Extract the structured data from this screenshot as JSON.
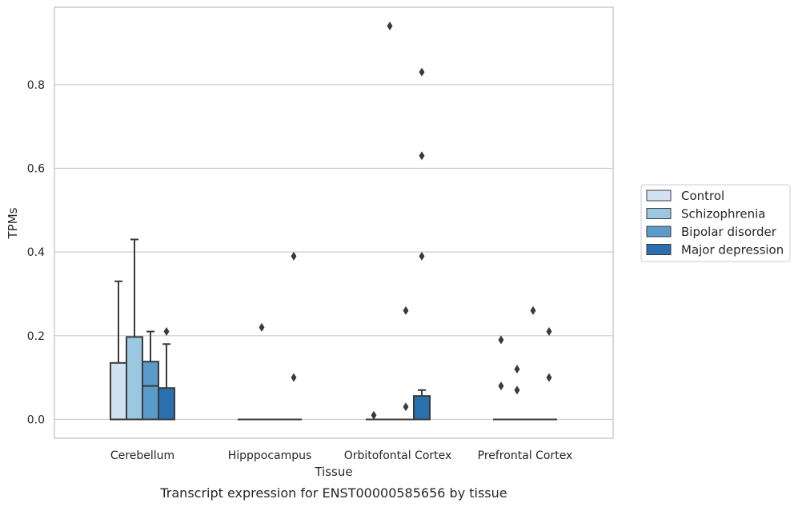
{
  "caption": "Transcript expression for ENST00000585656 by tissue",
  "chart_data": {
    "type": "box",
    "xlabel": "Tissue",
    "ylabel": "TPMs",
    "ylim": [
      -0.045,
      0.985
    ],
    "yticks": [
      0.0,
      0.2,
      0.4,
      0.6,
      0.8
    ],
    "ytick_labels": [
      "0.0",
      "0.2",
      "0.4",
      "0.6",
      "0.8"
    ],
    "grid": "horizontal",
    "legend_position": "right",
    "categories": [
      "Cerebellum",
      "Hipppocampus",
      "Orbitofontal Cortex",
      "Prefrontal Cortex"
    ],
    "series": [
      {
        "name": "Control",
        "color": "#d1e2f1",
        "boxes": [
          {
            "q1": 0.0,
            "median": 0.0,
            "q3": 0.135,
            "whisker_low": 0.0,
            "whisker_high": 0.33,
            "outliers": []
          },
          {
            "q1": 0.0,
            "median": 0.0,
            "q3": 0.0,
            "whisker_low": 0.0,
            "whisker_high": 0.0,
            "outliers": []
          },
          {
            "q1": 0.0,
            "median": 0.0,
            "q3": 0.0,
            "whisker_low": 0.0,
            "whisker_high": 0.0,
            "outliers": [
              0.01
            ]
          },
          {
            "q1": 0.0,
            "median": 0.0,
            "q3": 0.0,
            "whisker_low": 0.0,
            "whisker_high": 0.0,
            "outliers": [
              0.08,
              0.19
            ]
          }
        ]
      },
      {
        "name": "Schizophrenia",
        "color": "#9ac8e0",
        "boxes": [
          {
            "q1": 0.0,
            "median": 0.0,
            "q3": 0.197,
            "whisker_low": 0.0,
            "whisker_high": 0.43,
            "outliers": []
          },
          {
            "q1": 0.0,
            "median": 0.0,
            "q3": 0.0,
            "whisker_low": 0.0,
            "whisker_high": 0.0,
            "outliers": [
              0.22
            ]
          },
          {
            "q1": 0.0,
            "median": 0.0,
            "q3": 0.0,
            "whisker_low": 0.0,
            "whisker_high": 0.0,
            "outliers": [
              0.94
            ]
          },
          {
            "q1": 0.0,
            "median": 0.0,
            "q3": 0.0,
            "whisker_low": 0.0,
            "whisker_high": 0.0,
            "outliers": [
              0.07,
              0.12
            ]
          }
        ]
      },
      {
        "name": "Bipolar disorder",
        "color": "#5a9bc9",
        "boxes": [
          {
            "q1": 0.0,
            "median": 0.08,
            "q3": 0.138,
            "whisker_low": 0.0,
            "whisker_high": 0.21,
            "outliers": []
          },
          {
            "q1": 0.0,
            "median": 0.0,
            "q3": 0.0,
            "whisker_low": 0.0,
            "whisker_high": 0.0,
            "outliers": []
          },
          {
            "q1": 0.0,
            "median": 0.0,
            "q3": 0.0,
            "whisker_low": 0.0,
            "whisker_high": 0.0,
            "outliers": [
              0.03,
              0.26
            ]
          },
          {
            "q1": 0.0,
            "median": 0.0,
            "q3": 0.0,
            "whisker_low": 0.0,
            "whisker_high": 0.0,
            "outliers": [
              0.26
            ]
          }
        ]
      },
      {
        "name": "Major depression",
        "color": "#2a6fae",
        "boxes": [
          {
            "q1": 0.0,
            "median": 0.0,
            "q3": 0.075,
            "whisker_low": 0.0,
            "whisker_high": 0.18,
            "outliers": [
              0.21
            ]
          },
          {
            "q1": 0.0,
            "median": 0.0,
            "q3": 0.0,
            "whisker_low": 0.0,
            "whisker_high": 0.0,
            "outliers": [
              0.1,
              0.39
            ]
          },
          {
            "q1": 0.0,
            "median": 0.0,
            "q3": 0.056,
            "whisker_low": 0.0,
            "whisker_high": 0.07,
            "outliers": [
              0.39,
              0.63,
              0.83
            ]
          },
          {
            "q1": 0.0,
            "median": 0.0,
            "q3": 0.0,
            "whisker_low": 0.0,
            "whisker_high": 0.0,
            "outliers": [
              0.1,
              0.21
            ]
          }
        ]
      }
    ]
  }
}
